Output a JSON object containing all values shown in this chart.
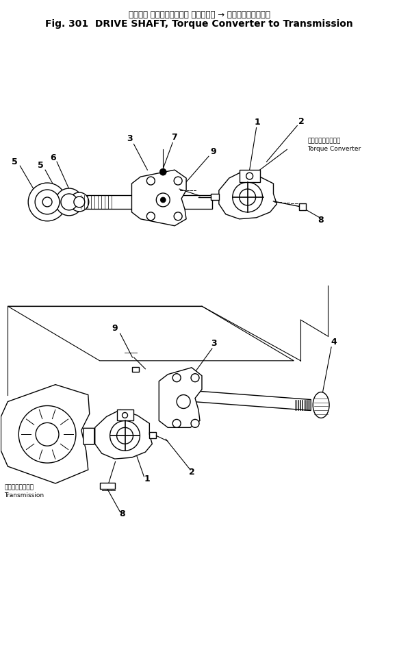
{
  "title_jp": "ドライブ シャフト　トルク コンバータ → トランスミッション",
  "title_en": "Fig. 301  DRIVE SHAFT, Torque Converter to Transmission",
  "bg_color": "#ffffff",
  "line_color": "#000000"
}
